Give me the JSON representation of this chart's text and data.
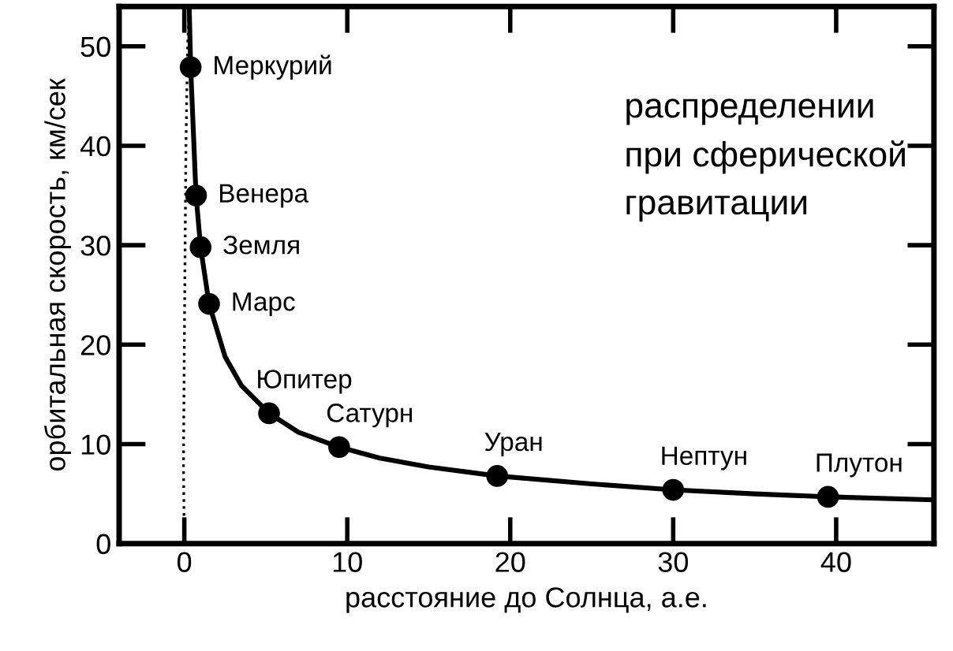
{
  "chart_data": {
    "type": "scatter",
    "xlabel": "расстояние до Солнца, а.е.",
    "ylabel": "орбитальная скорость, км/сек",
    "xlim": [
      -4,
      46
    ],
    "ylim": [
      0,
      54
    ],
    "xticks": [
      0,
      10,
      20,
      30,
      40
    ],
    "yticks": [
      0,
      10,
      20,
      30,
      40,
      50
    ],
    "grid": false,
    "legend": false,
    "series": [
      {
        "type": "line",
        "color": "#000000",
        "line_style": "dotted",
        "x": [
          0,
          -0.05,
          0,
          0.05,
          0.1,
          0.2,
          0.3
        ],
        "values": [
          0,
          8,
          20,
          30,
          40,
          50,
          54
        ]
      },
      {
        "type": "line",
        "color": "#000000",
        "line_style": "solid",
        "x": [
          0.3,
          0.39,
          0.72,
          1,
          1.52,
          2.5,
          3.5,
          5.2,
          7,
          9.5,
          12,
          15,
          19.2,
          25,
          30,
          35,
          39.5,
          46
        ],
        "values": [
          54,
          47.9,
          35,
          29.8,
          24.1,
          18.8,
          15.9,
          13.1,
          11.2,
          9.7,
          8.6,
          7.7,
          6.8,
          6.0,
          5.4,
          5.0,
          4.7,
          4.4
        ]
      },
      {
        "color": "#000000",
        "marker": "circle",
        "x": [
          0.39,
          0.72,
          1,
          1.52,
          5.2,
          9.5,
          19.2,
          30,
          39.5
        ],
        "values": [
          47.9,
          35,
          29.8,
          24.1,
          13.1,
          9.7,
          6.8,
          5.4,
          4.7
        ]
      }
    ],
    "annotations": [
      {
        "text": "Меркурий",
        "x": 0.39,
        "y": 47.9
      },
      {
        "text": "Венера",
        "x": 0.72,
        "y": 35
      },
      {
        "text": "Земля",
        "x": 1,
        "y": 29.8
      },
      {
        "text": "Марс",
        "x": 1.52,
        "y": 24.1
      },
      {
        "text": "Юпитер",
        "x": 5.2,
        "y": 13.1
      },
      {
        "text": "Сатурн",
        "x": 9.5,
        "y": 9.7
      },
      {
        "text": "Уран",
        "x": 19.2,
        "y": 6.8
      },
      {
        "text": "Нептун",
        "x": 30,
        "y": 5.4
      },
      {
        "text": "Плутон",
        "x": 39.5,
        "y": 4.7
      },
      "распределении\nпри сферической\nгравитации"
    ]
  }
}
